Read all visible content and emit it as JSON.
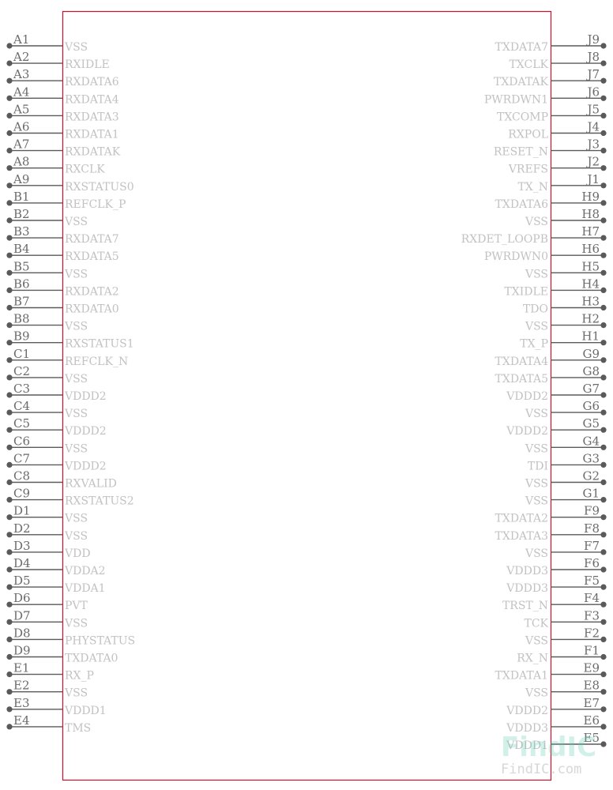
{
  "symbol": {
    "body_color": "#c8102e",
    "pin_color": "#5a5a5a",
    "label_color": "#c2c2c2",
    "left_pins": [
      {
        "num": "A1",
        "name": "VSS"
      },
      {
        "num": "A2",
        "name": "RXIDLE"
      },
      {
        "num": "A3",
        "name": "RXDATA6"
      },
      {
        "num": "A4",
        "name": "RXDATA4"
      },
      {
        "num": "A5",
        "name": "RXDATA3"
      },
      {
        "num": "A6",
        "name": "RXDATA1"
      },
      {
        "num": "A7",
        "name": "RXDATAK"
      },
      {
        "num": "A8",
        "name": "RXCLK"
      },
      {
        "num": "A9",
        "name": "RXSTATUS0"
      },
      {
        "num": "B1",
        "name": "REFCLK_P"
      },
      {
        "num": "B2",
        "name": "VSS"
      },
      {
        "num": "B3",
        "name": "RXDATA7"
      },
      {
        "num": "B4",
        "name": "RXDATA5"
      },
      {
        "num": "B5",
        "name": "VSS"
      },
      {
        "num": "B6",
        "name": "RXDATA2"
      },
      {
        "num": "B7",
        "name": "RXDATA0"
      },
      {
        "num": "B8",
        "name": "VSS"
      },
      {
        "num": "B9",
        "name": "RXSTATUS1"
      },
      {
        "num": "C1",
        "name": "REFCLK_N"
      },
      {
        "num": "C2",
        "name": "VSS"
      },
      {
        "num": "C3",
        "name": "VDDD2"
      },
      {
        "num": "C4",
        "name": "VSS"
      },
      {
        "num": "C5",
        "name": "VDDD2"
      },
      {
        "num": "C6",
        "name": "VSS"
      },
      {
        "num": "C7",
        "name": "VDDD2"
      },
      {
        "num": "C8",
        "name": "RXVALID"
      },
      {
        "num": "C9",
        "name": "RXSTATUS2"
      },
      {
        "num": "D1",
        "name": "VSS"
      },
      {
        "num": "D2",
        "name": "VSS"
      },
      {
        "num": "D3",
        "name": "VDD"
      },
      {
        "num": "D4",
        "name": "VDDA2"
      },
      {
        "num": "D5",
        "name": "VDDA1"
      },
      {
        "num": "D6",
        "name": "PVT"
      },
      {
        "num": "D7",
        "name": "VSS"
      },
      {
        "num": "D8",
        "name": "PHYSTATUS"
      },
      {
        "num": "D9",
        "name": "TXDATA0"
      },
      {
        "num": "E1",
        "name": "RX_P"
      },
      {
        "num": "E2",
        "name": "VSS"
      },
      {
        "num": "E3",
        "name": "VDDD1"
      },
      {
        "num": "E4",
        "name": "TMS"
      }
    ],
    "right_pins": [
      {
        "num": "J9",
        "name": "TXDATA7"
      },
      {
        "num": "J8",
        "name": "TXCLK"
      },
      {
        "num": "J7",
        "name": "TXDATAK"
      },
      {
        "num": "J6",
        "name": "PWRDWN1"
      },
      {
        "num": "J5",
        "name": "TXCOMP"
      },
      {
        "num": "J4",
        "name": "RXPOL"
      },
      {
        "num": "J3",
        "name": "RESET_N"
      },
      {
        "num": "J2",
        "name": "VREFS"
      },
      {
        "num": "J1",
        "name": "TX_N"
      },
      {
        "num": "H9",
        "name": "TXDATA6"
      },
      {
        "num": "H8",
        "name": "VSS"
      },
      {
        "num": "H7",
        "name": "RXDET_LOOPB"
      },
      {
        "num": "H6",
        "name": "PWRDWN0"
      },
      {
        "num": "H5",
        "name": "VSS"
      },
      {
        "num": "H4",
        "name": "TXIDLE"
      },
      {
        "num": "H3",
        "name": "TDO"
      },
      {
        "num": "H2",
        "name": "VSS"
      },
      {
        "num": "H1",
        "name": "TX_P"
      },
      {
        "num": "G9",
        "name": "TXDATA4"
      },
      {
        "num": "G8",
        "name": "TXDATA5"
      },
      {
        "num": "G7",
        "name": "VDDD2"
      },
      {
        "num": "G6",
        "name": "VSS"
      },
      {
        "num": "G5",
        "name": "VDDD2"
      },
      {
        "num": "G4",
        "name": "VSS"
      },
      {
        "num": "G3",
        "name": "TDI"
      },
      {
        "num": "G2",
        "name": "VSS"
      },
      {
        "num": "G1",
        "name": "VSS"
      },
      {
        "num": "F9",
        "name": "TXDATA2"
      },
      {
        "num": "F8",
        "name": "TXDATA3"
      },
      {
        "num": "F7",
        "name": "VSS"
      },
      {
        "num": "F6",
        "name": "VDDD3"
      },
      {
        "num": "F5",
        "name": "VDDD3"
      },
      {
        "num": "F4",
        "name": "TRST_N"
      },
      {
        "num": "F3",
        "name": "TCK"
      },
      {
        "num": "F2",
        "name": "VSS"
      },
      {
        "num": "F1",
        "name": "RX_N"
      },
      {
        "num": "E9",
        "name": "TXDATA1"
      },
      {
        "num": "E8",
        "name": "VSS"
      },
      {
        "num": "E7",
        "name": "VDDD2"
      },
      {
        "num": "E6",
        "name": "VDDD3"
      },
      {
        "num": "E5",
        "name": "VDDD1"
      }
    ]
  },
  "watermark": {
    "logo": "FindIC",
    "text": "FindIC.com",
    "color": "#5ccab0"
  }
}
